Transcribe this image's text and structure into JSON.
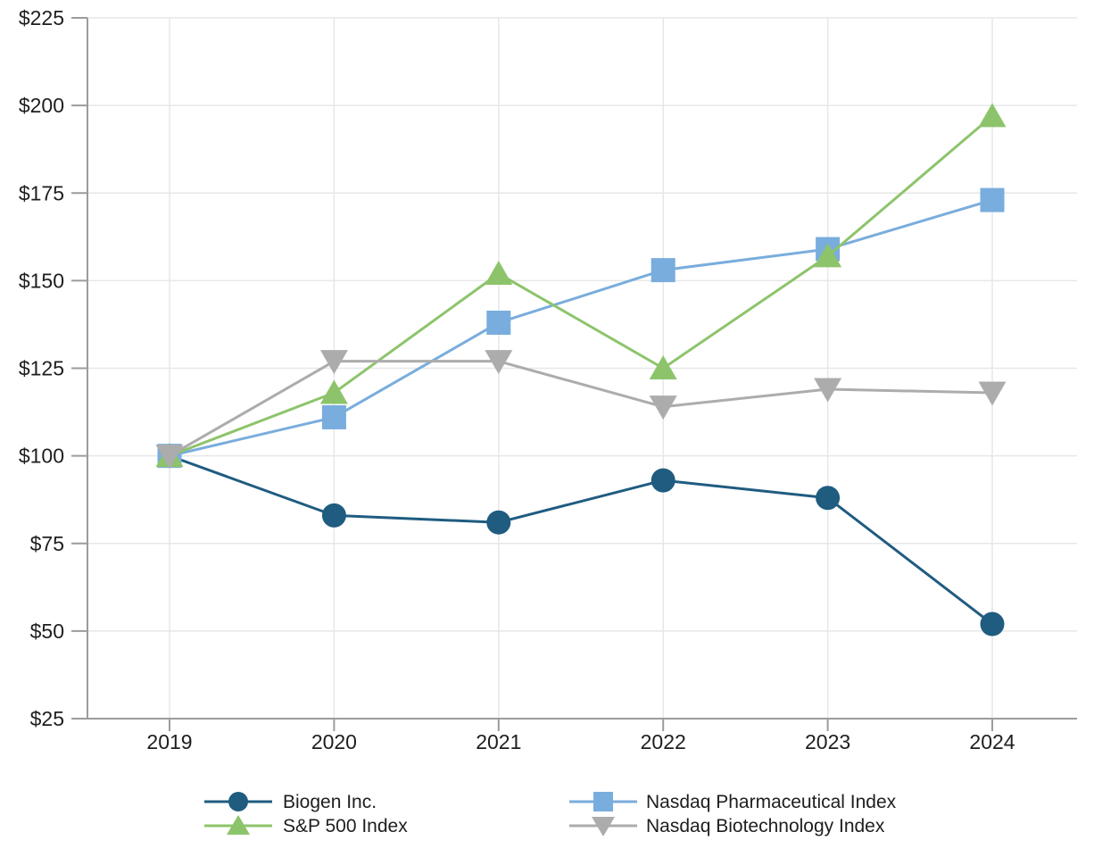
{
  "chart_data": {
    "type": "line",
    "x_categories": [
      "2019",
      "2020",
      "2021",
      "2022",
      "2023",
      "2024"
    ],
    "y_axis": {
      "min": 25,
      "max": 225,
      "tick_step": 25,
      "tick_labels": [
        "$25",
        "$50",
        "$75",
        "$100",
        "$125",
        "$150",
        "$175",
        "$200",
        "$225"
      ],
      "prefix": "$"
    },
    "grid": true,
    "legend_position": "bottom",
    "series": [
      {
        "name": "Biogen Inc.",
        "marker": "circle",
        "color": "#1F5C80",
        "values": [
          100,
          83,
          81,
          93,
          88,
          52
        ]
      },
      {
        "name": "S&P 500 Index",
        "marker": "triangle-up",
        "color": "#8DC46B",
        "values": [
          100,
          118,
          152,
          125,
          157,
          197
        ]
      },
      {
        "name": "Nasdaq Pharmaceutical Index",
        "marker": "square",
        "color": "#79ADDD",
        "values": [
          100,
          111,
          138,
          153,
          159,
          173
        ]
      },
      {
        "name": "Nasdaq Biotechnology Index",
        "marker": "triangle-down",
        "color": "#ACACAC",
        "values": [
          100,
          127,
          127,
          114,
          119,
          118
        ]
      }
    ],
    "draw_order": [
      0,
      2,
      1,
      3
    ],
    "colors": {
      "axis": "#9C9C9C",
      "grid": "#E7E7E7",
      "text": "#1E1E1E",
      "background": "#FFFFFF"
    }
  }
}
